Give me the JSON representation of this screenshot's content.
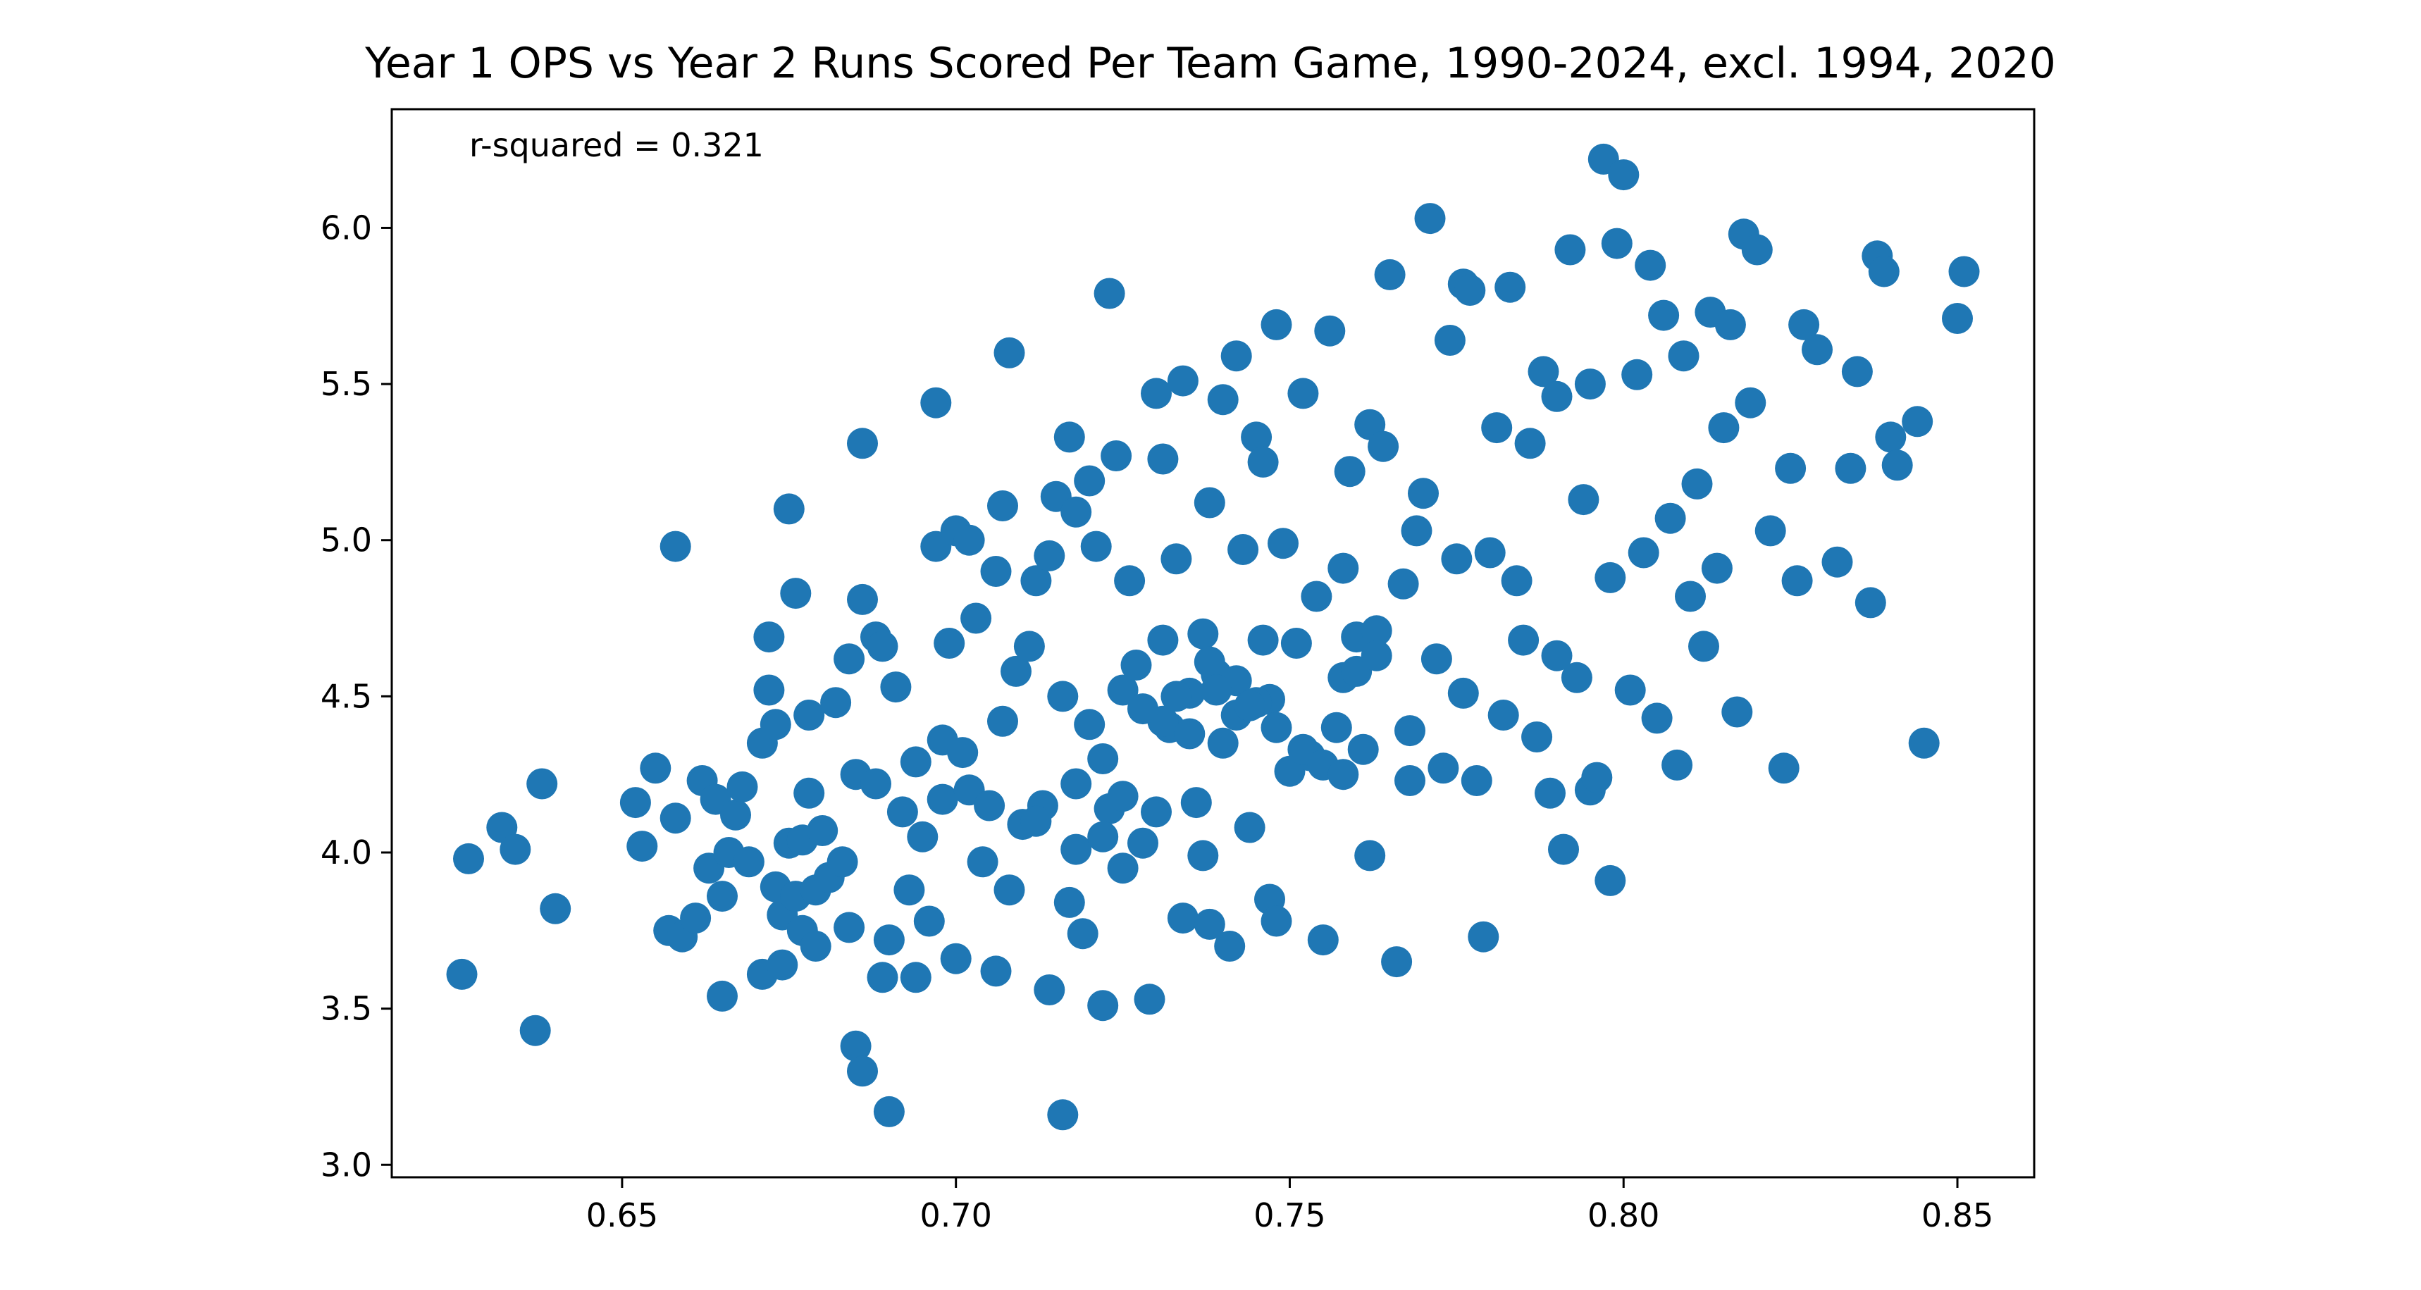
{
  "chart_data": {
    "type": "scatter",
    "title": "Year 1 OPS vs Year 2 Runs Scored Per Team Game, 1990-2024, excl. 1994, 2020",
    "xlabel": "",
    "ylabel": "",
    "annotation": "r-squared = 0.321",
    "xlim": [
      0.6155,
      0.8615
    ],
    "ylim": [
      2.96,
      6.38
    ],
    "x_ticks": [
      0.65,
      0.7,
      0.75,
      0.8,
      0.85
    ],
    "x_tick_labels": [
      "0.65",
      "0.70",
      "0.75",
      "0.80",
      "0.85"
    ],
    "y_ticks": [
      3.0,
      3.5,
      4.0,
      4.5,
      5.0,
      5.5,
      6.0
    ],
    "y_tick_labels": [
      "3.0",
      "3.5",
      "4.0",
      "4.5",
      "5.0",
      "5.5",
      "6.0"
    ],
    "grid": false,
    "legend": "none",
    "marker_color": "#1f77b4",
    "series": [
      {
        "x": [
          0.626,
          0.627,
          0.632,
          0.634,
          0.637,
          0.638,
          0.64,
          0.652,
          0.653,
          0.655,
          0.657,
          0.658,
          0.658,
          0.659,
          0.661,
          0.662,
          0.663,
          0.664,
          0.665,
          0.665,
          0.666,
          0.667,
          0.668,
          0.669,
          0.671,
          0.671,
          0.672,
          0.672,
          0.673,
          0.673,
          0.674,
          0.674,
          0.675,
          0.675,
          0.676,
          0.676,
          0.677,
          0.677,
          0.678,
          0.678,
          0.679,
          0.679,
          0.68,
          0.681,
          0.682,
          0.683,
          0.684,
          0.684,
          0.685,
          0.685,
          0.686,
          0.686,
          0.686,
          0.688,
          0.688,
          0.689,
          0.689,
          0.69,
          0.69,
          0.691,
          0.692,
          0.693,
          0.694,
          0.694,
          0.695,
          0.696,
          0.697,
          0.697,
          0.698,
          0.698,
          0.699,
          0.7,
          0.7,
          0.701,
          0.702,
          0.702,
          0.703,
          0.704,
          0.705,
          0.706,
          0.706,
          0.707,
          0.707,
          0.708,
          0.708,
          0.709,
          0.71,
          0.711,
          0.712,
          0.713,
          0.714,
          0.714,
          0.715,
          0.716,
          0.716,
          0.717,
          0.717,
          0.718,
          0.718,
          0.719,
          0.72,
          0.72,
          0.721,
          0.722,
          0.722,
          0.723,
          0.723,
          0.724,
          0.725,
          0.725,
          0.726,
          0.727,
          0.728,
          0.729,
          0.73,
          0.73,
          0.731,
          0.731,
          0.732,
          0.733,
          0.734,
          0.734,
          0.735,
          0.736,
          0.737,
          0.737,
          0.738,
          0.738,
          0.739,
          0.74,
          0.74,
          0.741,
          0.742,
          0.742,
          0.743,
          0.744,
          0.745,
          0.746,
          0.746,
          0.747,
          0.747,
          0.748,
          0.748,
          0.749,
          0.75,
          0.751,
          0.752,
          0.753,
          0.754,
          0.755,
          0.756,
          0.757,
          0.758,
          0.758,
          0.759,
          0.76,
          0.761,
          0.762,
          0.762,
          0.763,
          0.764,
          0.765,
          0.766,
          0.767,
          0.768,
          0.769,
          0.77,
          0.771,
          0.772,
          0.773,
          0.774,
          0.775,
          0.776,
          0.776,
          0.777,
          0.778,
          0.779,
          0.78,
          0.781,
          0.782,
          0.783,
          0.784,
          0.785,
          0.786,
          0.787,
          0.788,
          0.789,
          0.79,
          0.79,
          0.791,
          0.792,
          0.793,
          0.794,
          0.795,
          0.795,
          0.796,
          0.797,
          0.798,
          0.798,
          0.799,
          0.8,
          0.801,
          0.802,
          0.803,
          0.804,
          0.805,
          0.806,
          0.807,
          0.808,
          0.809,
          0.81,
          0.811,
          0.812,
          0.813,
          0.814,
          0.815,
          0.816,
          0.817,
          0.818,
          0.819,
          0.82,
          0.822,
          0.824,
          0.825,
          0.826,
          0.827,
          0.829,
          0.832,
          0.834,
          0.835,
          0.837,
          0.838,
          0.839,
          0.84,
          0.841,
          0.844,
          0.845,
          0.85,
          0.851,
          0.731,
          0.733,
          0.735,
          0.728,
          0.745,
          0.748,
          0.752,
          0.742,
          0.738,
          0.755,
          0.758,
          0.722,
          0.725,
          0.718,
          0.712,
          0.76,
          0.763,
          0.768,
          0.744,
          0.739
        ],
        "y": [
          3.61,
          3.98,
          4.08,
          4.01,
          3.43,
          4.22,
          3.82,
          4.16,
          4.02,
          4.27,
          3.75,
          4.98,
          4.11,
          3.73,
          3.79,
          4.23,
          3.95,
          4.17,
          3.54,
          3.86,
          4.0,
          4.12,
          4.21,
          3.97,
          4.35,
          3.61,
          4.69,
          4.52,
          3.89,
          4.41,
          3.64,
          3.8,
          4.03,
          5.1,
          3.86,
          4.83,
          3.75,
          4.04,
          4.44,
          4.19,
          3.7,
          3.88,
          4.07,
          3.92,
          4.48,
          3.97,
          3.76,
          4.62,
          3.38,
          4.25,
          5.31,
          3.3,
          4.81,
          4.22,
          4.69,
          3.6,
          4.66,
          3.17,
          3.72,
          4.53,
          4.13,
          3.88,
          3.6,
          4.29,
          4.05,
          3.78,
          4.98,
          5.44,
          4.36,
          4.17,
          4.67,
          5.03,
          3.66,
          4.32,
          5.0,
          4.2,
          4.75,
          3.97,
          4.15,
          3.62,
          4.9,
          5.11,
          4.42,
          5.6,
          3.88,
          4.58,
          4.09,
          4.66,
          4.87,
          4.15,
          4.95,
          3.56,
          5.14,
          3.16,
          4.5,
          5.33,
          3.84,
          4.01,
          5.09,
          3.74,
          4.41,
          5.19,
          4.98,
          3.51,
          4.3,
          5.79,
          4.14,
          5.27,
          3.95,
          4.52,
          4.87,
          4.6,
          4.03,
          3.53,
          5.47,
          4.13,
          5.26,
          4.68,
          4.4,
          4.94,
          3.79,
          5.51,
          4.51,
          4.16,
          3.99,
          4.7,
          5.12,
          3.77,
          4.57,
          5.45,
          4.35,
          3.7,
          5.59,
          4.44,
          4.97,
          4.08,
          5.33,
          4.68,
          5.25,
          3.85,
          4.49,
          5.69,
          3.78,
          4.99,
          4.26,
          4.67,
          5.47,
          4.31,
          4.82,
          3.72,
          5.67,
          4.4,
          4.91,
          4.56,
          5.22,
          4.69,
          4.33,
          5.37,
          3.99,
          4.71,
          5.3,
          5.85,
          3.65,
          4.86,
          4.23,
          5.03,
          5.15,
          6.03,
          4.62,
          4.27,
          5.64,
          4.94,
          5.82,
          4.51,
          5.8,
          4.23,
          3.73,
          4.96,
          5.36,
          4.44,
          5.81,
          4.87,
          4.68,
          5.31,
          4.37,
          5.54,
          4.19,
          4.63,
          5.46,
          4.01,
          5.93,
          4.56,
          5.13,
          4.2,
          5.5,
          4.24,
          6.22,
          3.91,
          4.88,
          5.95,
          6.17,
          4.52,
          5.53,
          4.96,
          5.88,
          4.43,
          5.72,
          5.07,
          4.28,
          5.59,
          4.82,
          5.18,
          4.66,
          5.73,
          4.91,
          5.36,
          5.69,
          4.45,
          5.98,
          5.44,
          5.93,
          5.03,
          4.27,
          5.23,
          4.87,
          5.69,
          5.61,
          4.93,
          5.23,
          5.54,
          4.8,
          5.91,
          5.86,
          5.33,
          5.24,
          5.38,
          4.35,
          5.71,
          5.86,
          4.42,
          4.5,
          4.38,
          4.46,
          4.48,
          4.4,
          4.33,
          4.55,
          4.61,
          4.28,
          4.25,
          4.05,
          4.18,
          4.22,
          4.1,
          4.58,
          4.63,
          4.39,
          4.47,
          4.52
        ]
      }
    ]
  }
}
